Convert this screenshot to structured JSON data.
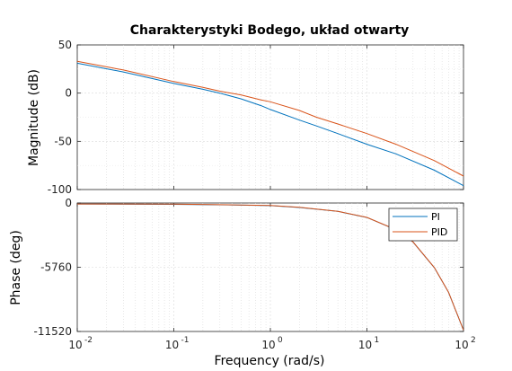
{
  "chart_data": {
    "type": "line",
    "title": "Charakterystyki Bodego, układ otwarty",
    "xlabel": "Frequency  (rad/s)",
    "xscale": "log",
    "xlim": [
      0.01,
      100
    ],
    "x_ticks": [
      {
        "label": "10",
        "exp": "-2"
      },
      {
        "label": "10",
        "exp": "-1"
      },
      {
        "label": "10",
        "exp": "0"
      },
      {
        "label": "10",
        "exp": "1"
      },
      {
        "label": "10",
        "exp": "2"
      }
    ],
    "grid": true,
    "legend_placement": "top-right (phase plot)",
    "colors": {
      "PI": "#0072BD",
      "PID": "#D95319"
    },
    "panels": [
      {
        "name": "magnitude",
        "ylabel": "Magnitude (dB)",
        "ylim": [
          -100,
          50
        ],
        "y_ticks": [
          "50",
          "0",
          "-50",
          "-100"
        ],
        "series": [
          {
            "name": "PI",
            "x": [
              0.01,
              0.03,
              0.1,
              0.2,
              0.3,
              0.5,
              0.8,
              1,
              2,
              3,
              5,
              10,
              20,
              50,
              100
            ],
            "y": [
              31,
              22,
              10,
              4,
              0,
              -6,
              -13,
              -17,
              -28,
              -34,
              -42,
              -53,
              -63,
              -80,
              -96
            ]
          },
          {
            "name": "PID",
            "x": [
              0.01,
              0.03,
              0.1,
              0.2,
              0.3,
              0.5,
              0.8,
              1,
              2,
              3,
              5,
              10,
              20,
              50,
              100
            ],
            "y": [
              33,
              24,
              12,
              6,
              2,
              -2,
              -7,
              -9,
              -18,
              -25,
              -32,
              -42,
              -53,
              -70,
              -86
            ]
          }
        ]
      },
      {
        "name": "phase",
        "ylabel": "Phase (deg)",
        "ylim": [
          -11520,
          0
        ],
        "y_ticks": [
          "0",
          "-5760",
          "-11520"
        ],
        "series": [
          {
            "name": "PI",
            "x": [
              0.01,
              0.1,
              0.3,
              1,
              2,
              5,
              10,
              20,
              30,
              50,
              70,
              100
            ],
            "y": [
              -90,
              -120,
              -160,
              -230,
              -400,
              -750,
              -1300,
              -2400,
              -3500,
              -5800,
              -8000,
              -11400
            ]
          },
          {
            "name": "PID",
            "x": [
              0.01,
              0.1,
              0.3,
              1,
              2,
              5,
              10,
              20,
              30,
              50,
              70,
              100
            ],
            "y": [
              -88,
              -105,
              -150,
              -220,
              -390,
              -740,
              -1290,
              -2390,
              -3490,
              -5790,
              -7990,
              -11390
            ]
          }
        ]
      }
    ],
    "legend": [
      "PI",
      "PID"
    ]
  }
}
